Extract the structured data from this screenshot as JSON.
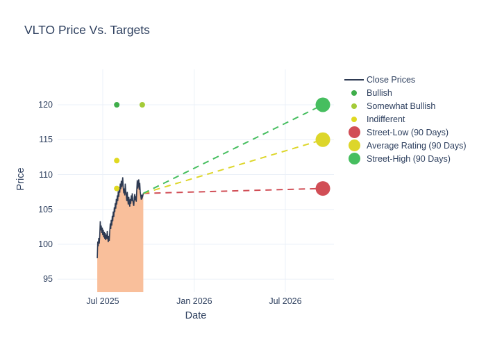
{
  "title": "VLTO Price Vs. Targets",
  "axes": {
    "x_title": "Date",
    "y_title": "Price"
  },
  "colors": {
    "text": "#2d3f5e",
    "grid": "#ebf0f8",
    "close_line": "#2e3a52",
    "close_fill": "#f9bf9b",
    "bullish": "#3fae4a",
    "somewhat_bullish": "#a4cb38",
    "indifferent": "#e0d921",
    "street_low": "#d14e56",
    "average_rating": "#ddd62a",
    "street_high": "#46be5f"
  },
  "chart_data": {
    "type": "line",
    "title": "VLTO Price Vs. Targets",
    "xlabel": "Date",
    "ylabel": "Price",
    "grid": true,
    "legend_position": "right",
    "x_unit": "days since first plotted close (late June 2025)",
    "xlim": [
      -80,
      490
    ],
    "ylim": [
      93,
      122
    ],
    "x_ticks": [
      {
        "label": "Jul 2025",
        "t": 11
      },
      {
        "label": "Jan 2026",
        "t": 194
      },
      {
        "label": "Jul 2026",
        "t": 376
      }
    ],
    "y_ticks": [
      95,
      100,
      105,
      110,
      115,
      120
    ],
    "series": [
      {
        "name": "Close Prices",
        "kind": "line_area",
        "color": "#2e3a52",
        "fill": "#f9bf9b",
        "points": [
          [
            0,
            98.0
          ],
          [
            1,
            100.4
          ],
          [
            2,
            99.7
          ],
          [
            3,
            100.9
          ],
          [
            4,
            100.1
          ],
          [
            5,
            101.3
          ],
          [
            6,
            103.3
          ],
          [
            7,
            102.0
          ],
          [
            8,
            102.7
          ],
          [
            9,
            101.6
          ],
          [
            10,
            102.4
          ],
          [
            11,
            101.3
          ],
          [
            12,
            102.1
          ],
          [
            13,
            101.0
          ],
          [
            14,
            101.8
          ],
          [
            15,
            100.8
          ],
          [
            16,
            101.6
          ],
          [
            17,
            100.6
          ],
          [
            18,
            101.4
          ],
          [
            19,
            100.8
          ],
          [
            20,
            101.9
          ],
          [
            21,
            101.0
          ],
          [
            22,
            100.3
          ],
          [
            23,
            101.2
          ],
          [
            24,
            100.5
          ],
          [
            25,
            101.9
          ],
          [
            26,
            103.0
          ],
          [
            27,
            102.2
          ],
          [
            28,
            103.5
          ],
          [
            29,
            102.7
          ],
          [
            30,
            104.1
          ],
          [
            31,
            103.3
          ],
          [
            32,
            104.7
          ],
          [
            33,
            103.9
          ],
          [
            34,
            105.3
          ],
          [
            35,
            104.6
          ],
          [
            36,
            105.9
          ],
          [
            37,
            105.1
          ],
          [
            38,
            106.5
          ],
          [
            39,
            105.7
          ],
          [
            40,
            107.0
          ],
          [
            41,
            106.2
          ],
          [
            42,
            107.6
          ],
          [
            43,
            106.8
          ],
          [
            44,
            108.2
          ],
          [
            45,
            107.4
          ],
          [
            46,
            108.7
          ],
          [
            47,
            107.9
          ],
          [
            48,
            109.1
          ],
          [
            49,
            108.2
          ],
          [
            50,
            108.9
          ],
          [
            51,
            109.6
          ],
          [
            52,
            108.1
          ],
          [
            53,
            107.3
          ],
          [
            54,
            108.0
          ],
          [
            55,
            107.0
          ],
          [
            56,
            108.7
          ],
          [
            57,
            107.7
          ],
          [
            58,
            106.9
          ],
          [
            59,
            106.2
          ],
          [
            60,
            107.5
          ],
          [
            61,
            106.5
          ],
          [
            62,
            105.7
          ],
          [
            63,
            106.8
          ],
          [
            64,
            106.0
          ],
          [
            65,
            105.4
          ],
          [
            66,
            106.5
          ],
          [
            67,
            105.8
          ],
          [
            68,
            107.0
          ],
          [
            69,
            106.2
          ],
          [
            70,
            107.3
          ],
          [
            71,
            106.4
          ],
          [
            72,
            105.8
          ],
          [
            73,
            105.5
          ],
          [
            74,
            106.7
          ],
          [
            75,
            107.2
          ],
          [
            76,
            106.3
          ],
          [
            77,
            106.9
          ],
          [
            78,
            106.1
          ],
          [
            79,
            107.8
          ],
          [
            80,
            109.2
          ],
          [
            81,
            108.0
          ],
          [
            82,
            108.7
          ],
          [
            83,
            109.3
          ],
          [
            84,
            107.8
          ],
          [
            85,
            108.8
          ],
          [
            86,
            107.5
          ],
          [
            87,
            106.9
          ],
          [
            88,
            106.4
          ],
          [
            89,
            107.1
          ],
          [
            90,
            106.7
          ],
          [
            91,
            106.9
          ],
          [
            92,
            107.3
          ]
        ]
      },
      {
        "name": "Bullish",
        "kind": "scatter",
        "color": "#3fae4a",
        "points": [
          [
            39,
            120
          ]
        ]
      },
      {
        "name": "Somewhat Bullish",
        "kind": "scatter",
        "color": "#a4cb38",
        "points": [
          [
            90,
            120
          ]
        ]
      },
      {
        "name": "Indifferent",
        "kind": "scatter",
        "color": "#e0d921",
        "points": [
          [
            39,
            112
          ],
          [
            39,
            108
          ]
        ]
      },
      {
        "name": "Street-Low (90 Days)",
        "kind": "target",
        "color": "#d14e56",
        "point": [
          451,
          108
        ]
      },
      {
        "name": "Average Rating (90 Days)",
        "kind": "target",
        "color": "#ddd62a",
        "point": [
          451,
          115
        ]
      },
      {
        "name": "Street-High (90 Days)",
        "kind": "target",
        "color": "#46be5f",
        "point": [
          451,
          120
        ]
      }
    ]
  }
}
